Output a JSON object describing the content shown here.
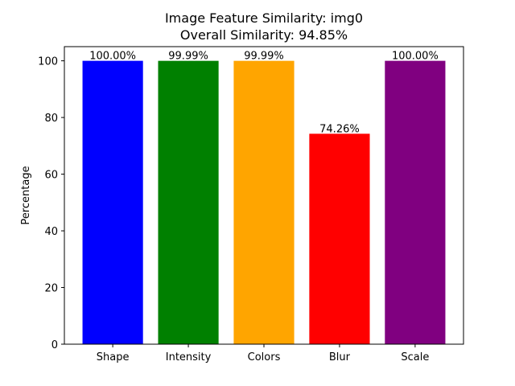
{
  "chart_data": {
    "type": "bar",
    "title": "Image Feature Similarity: img0",
    "subtitle": "Overall Similarity: 94.85%",
    "xlabel": "",
    "ylabel": "Percentage",
    "categories": [
      "Shape",
      "Intensity",
      "Colors",
      "Blur",
      "Scale"
    ],
    "values": [
      100.0,
      99.99,
      99.99,
      74.26,
      100.0
    ],
    "value_labels": [
      "100.00%",
      "99.99%",
      "99.99%",
      "74.26%",
      "100.00%"
    ],
    "colors": [
      "#0000ff",
      "#008000",
      "#ffa500",
      "#ff0000",
      "#800080"
    ],
    "ylim": [
      0,
      105
    ],
    "yticks": [
      0,
      20,
      40,
      60,
      80,
      100
    ],
    "grid": false,
    "legend": "none"
  }
}
